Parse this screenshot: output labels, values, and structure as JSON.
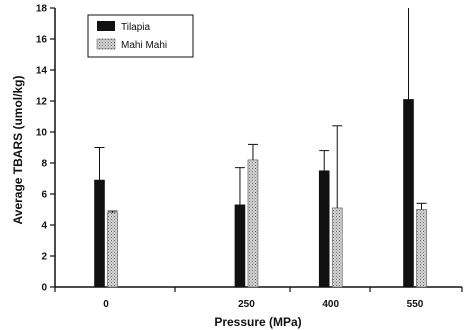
{
  "chart_data": {
    "type": "bar",
    "categories": [
      "0",
      "250",
      "400",
      "550"
    ],
    "x_values": [
      0,
      250,
      400,
      550
    ],
    "xlabel": "Pressure (MPa)",
    "ylabel": "Average TBARS (umol/kg)",
    "ylim": [
      0,
      18
    ],
    "yticks": [
      0,
      2,
      4,
      6,
      8,
      10,
      12,
      14,
      16,
      18
    ],
    "grid": false,
    "legend_position": "top-left",
    "series": [
      {
        "name": "Tilapia",
        "values": [
          6.9,
          5.3,
          7.5,
          12.1
        ],
        "error": [
          2.1,
          2.4,
          1.3,
          6.0
        ],
        "color": "#111111",
        "pattern": "solid"
      },
      {
        "name": "Mahi Mahi",
        "values": [
          4.8,
          8.2,
          5.1,
          5.0
        ],
        "error": [
          0.1,
          1.0,
          5.3,
          0.4
        ],
        "color": "#c8c8c8",
        "pattern": "stipple"
      }
    ]
  }
}
